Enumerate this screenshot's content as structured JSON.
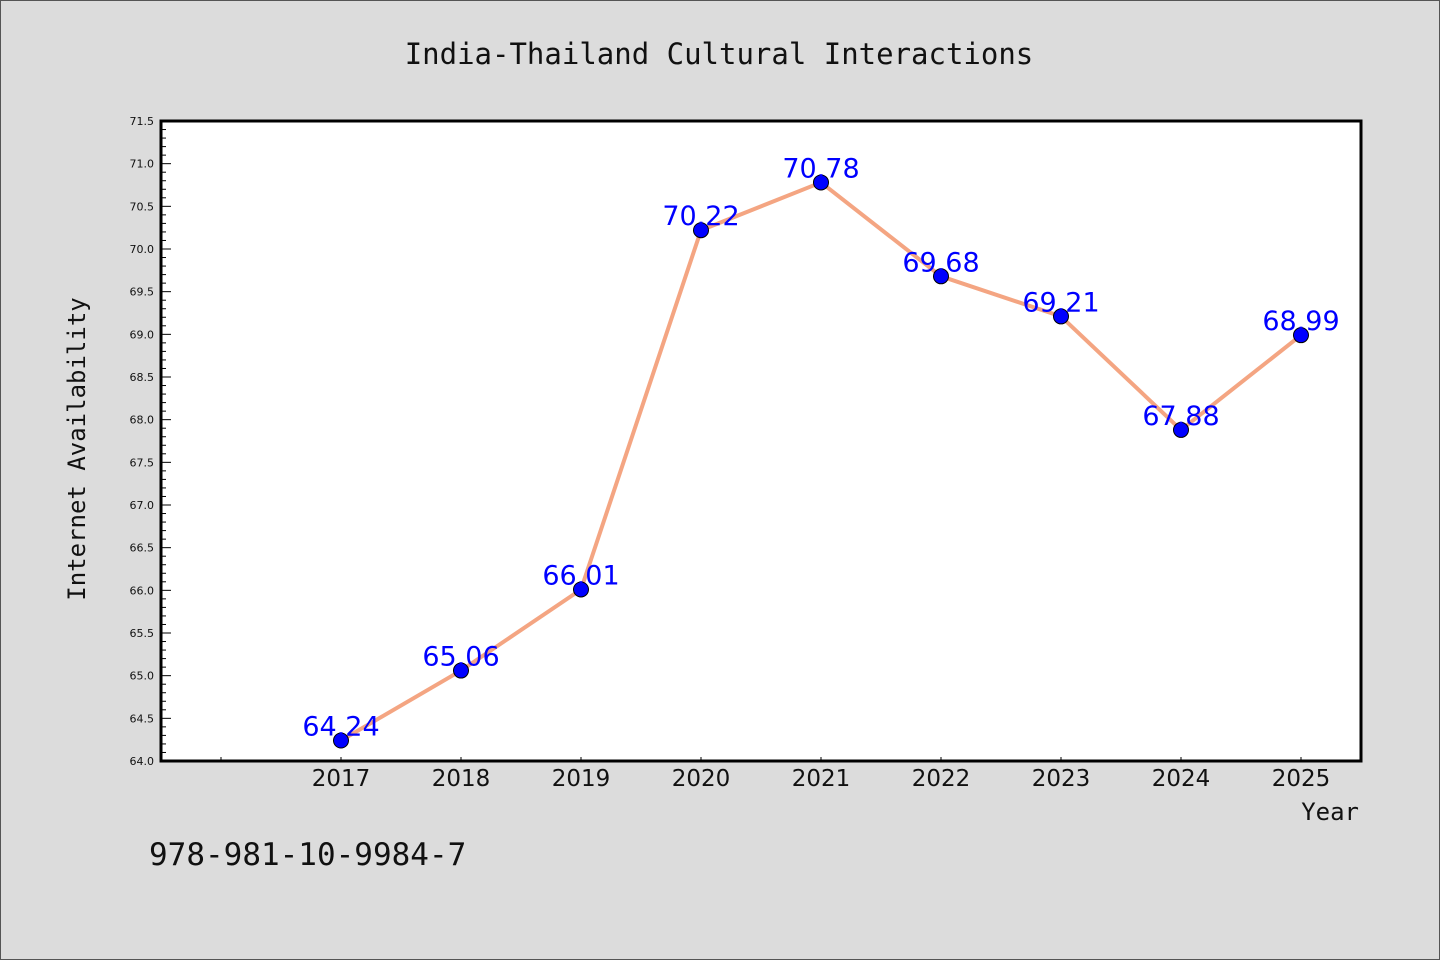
{
  "chart_data": {
    "type": "line",
    "title": "India-Thailand Cultural Interactions",
    "xlabel": "Year",
    "ylabel": "Internet Availability",
    "x": [
      "2017",
      "2018",
      "2019",
      "2020",
      "2021",
      "2022",
      "2023",
      "2024",
      "2025"
    ],
    "series": [
      {
        "values": [
          64.24,
          65.06,
          66.01,
          70.22,
          70.78,
          69.68,
          69.21,
          67.88,
          68.99
        ],
        "data_labels": [
          "64.24",
          "65.06",
          "66.01",
          "70.22",
          "70.78",
          "69.68",
          "69.21",
          "67.88",
          "68.99"
        ]
      }
    ],
    "ylim": [
      64.0,
      71.5
    ],
    "yticks": [
      "64.0",
      "64.5",
      "65.0",
      "65.5",
      "66.0",
      "66.5",
      "67.0",
      "67.5",
      "68.0",
      "68.5",
      "69.0",
      "69.5",
      "70.0",
      "70.5",
      "71.0",
      "71.5"
    ],
    "grid": false,
    "legend": "none"
  },
  "footnote": "978-981-10-9984-7",
  "colors": {
    "background": "#dcdcdc",
    "plot_background": "#ffffff",
    "line": "#f4a582",
    "marker": "#0000ff",
    "data_label": "#0000ff"
  }
}
